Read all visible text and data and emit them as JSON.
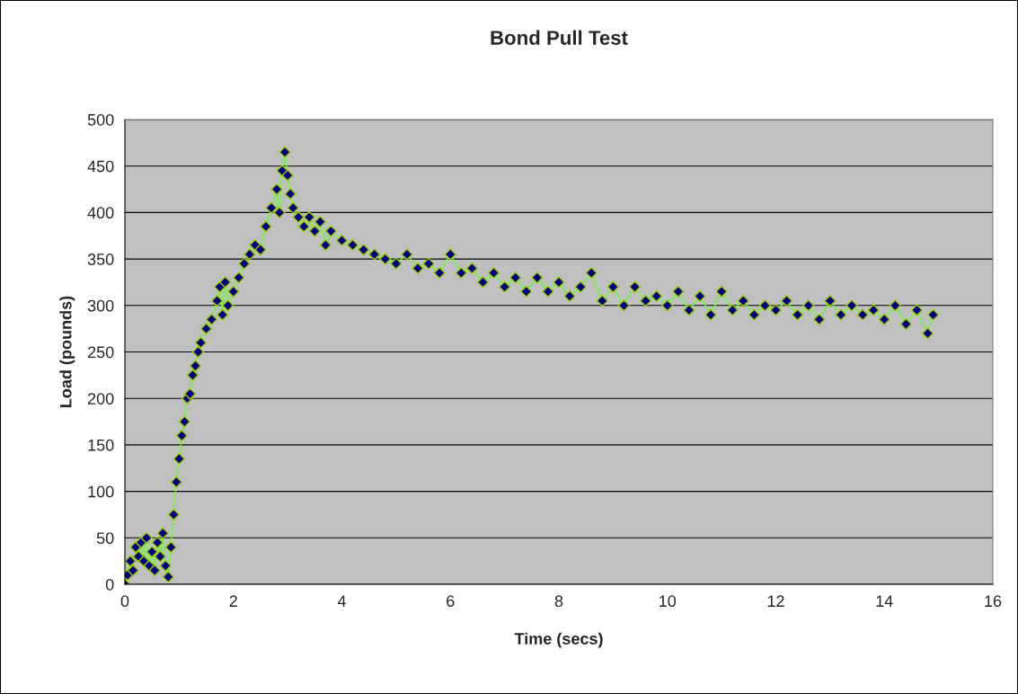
{
  "chart_data": {
    "type": "line",
    "title": "Bond Pull Test",
    "xlabel": "Time (secs)",
    "ylabel": "Load (pounds)",
    "x": [
      0,
      0.05,
      0.1,
      0.15,
      0.2,
      0.25,
      0.3,
      0.35,
      0.4,
      0.45,
      0.5,
      0.55,
      0.6,
      0.65,
      0.7,
      0.75,
      0.8,
      0.85,
      0.9,
      0.95,
      1.0,
      1.05,
      1.1,
      1.15,
      1.2,
      1.25,
      1.3,
      1.35,
      1.4,
      1.5,
      1.6,
      1.7,
      1.75,
      1.8,
      1.85,
      1.9,
      2.0,
      2.1,
      2.2,
      2.3,
      2.4,
      2.5,
      2.6,
      2.7,
      2.8,
      2.85,
      2.9,
      2.95,
      3.0,
      3.05,
      3.1,
      3.2,
      3.3,
      3.4,
      3.5,
      3.6,
      3.7,
      3.8,
      4.0,
      4.2,
      4.4,
      4.6,
      4.8,
      5.0,
      5.2,
      5.4,
      5.6,
      5.8,
      6.0,
      6.2,
      6.4,
      6.6,
      6.8,
      7.0,
      7.2,
      7.4,
      7.6,
      7.8,
      8.0,
      8.2,
      8.4,
      8.6,
      8.8,
      9.0,
      9.2,
      9.4,
      9.6,
      9.8,
      10.0,
      10.2,
      10.4,
      10.6,
      10.8,
      11.0,
      11.2,
      11.4,
      11.6,
      11.8,
      12.0,
      12.2,
      12.4,
      12.6,
      12.8,
      13.0,
      13.2,
      13.4,
      13.6,
      13.8,
      14.0,
      14.2,
      14.4,
      14.6,
      14.8,
      14.9
    ],
    "series": [
      {
        "color": "#000080",
        "values": [
          0,
          10,
          25,
          15,
          40,
          30,
          45,
          25,
          50,
          20,
          35,
          15,
          45,
          30,
          55,
          20,
          8,
          40,
          75,
          110,
          135,
          160,
          175,
          200,
          205,
          225,
          235,
          250,
          260,
          275,
          285,
          305,
          320,
          290,
          325,
          300,
          315,
          330,
          345,
          355,
          365,
          360,
          385,
          405,
          425,
          400,
          445,
          465,
          440,
          420,
          405,
          395,
          385,
          395,
          380,
          390,
          365,
          380,
          370,
          365,
          360,
          355,
          350,
          345,
          355,
          340,
          345,
          335,
          355,
          335,
          340,
          325,
          335,
          320,
          330,
          315,
          330,
          315,
          325,
          310,
          320,
          335,
          305,
          320,
          300,
          320,
          305,
          310,
          300,
          315,
          295,
          310,
          290,
          315,
          295,
          305,
          290,
          300,
          295,
          305,
          290,
          300,
          285,
          305,
          290,
          300,
          290,
          295,
          285,
          300,
          280,
          295,
          270,
          290
        ]
      }
    ],
    "xlim": [
      0,
      16
    ],
    "xticks": [
      0,
      2,
      4,
      6,
      8,
      10,
      12,
      14,
      16
    ],
    "ylim": [
      0,
      500
    ],
    "yticks": [
      0,
      50,
      100,
      150,
      200,
      250,
      300,
      350,
      400,
      450,
      500
    ],
    "grid": "y",
    "marker": "diamond",
    "line_style": "solid",
    "legend": false
  }
}
